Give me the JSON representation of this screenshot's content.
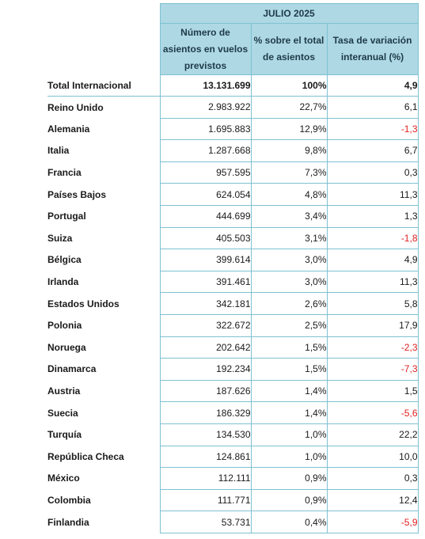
{
  "title": "JULIO 2025",
  "headers": {
    "col1": "Número de asientos en vuelos previstos",
    "col2": "% sobre el total de asientos",
    "col3": "Tasa de variación interanual (%)"
  },
  "total": {
    "name": "Total Internacional",
    "seats": "13.131.699",
    "pct": "100%",
    "var": "4,9"
  },
  "rows": [
    {
      "name": "Reino Unido",
      "seats": "2.983.922",
      "pct": "22,7%",
      "var": "6,1"
    },
    {
      "name": "Alemania",
      "seats": "1.695.883",
      "pct": "12,9%",
      "var": "-1,3"
    },
    {
      "name": "Italia",
      "seats": "1.287.668",
      "pct": "9,8%",
      "var": "6,7"
    },
    {
      "name": "Francia",
      "seats": "957.595",
      "pct": "7,3%",
      "var": "0,3"
    },
    {
      "name": "Países Bajos",
      "seats": "624.054",
      "pct": "4,8%",
      "var": "11,3"
    },
    {
      "name": "Portugal",
      "seats": "444.699",
      "pct": "3,4%",
      "var": "1,3"
    },
    {
      "name": "Suiza",
      "seats": "405.503",
      "pct": "3,1%",
      "var": "-1,8"
    },
    {
      "name": "Bélgica",
      "seats": "399.614",
      "pct": "3,0%",
      "var": "4,9"
    },
    {
      "name": "Irlanda",
      "seats": "391.461",
      "pct": "3,0%",
      "var": "11,3"
    },
    {
      "name": "Estados Unidos",
      "seats": "342.181",
      "pct": "2,6%",
      "var": "5,8"
    },
    {
      "name": "Polonia",
      "seats": "322.672",
      "pct": "2,5%",
      "var": "17,9"
    },
    {
      "name": "Noruega",
      "seats": "202.642",
      "pct": "1,5%",
      "var": "-2,3"
    },
    {
      "name": "Dinamarca",
      "seats": "192.234",
      "pct": "1,5%",
      "var": "-7,3"
    },
    {
      "name": "Austria",
      "seats": "187.626",
      "pct": "1,4%",
      "var": "1,5"
    },
    {
      "name": "Suecia",
      "seats": "186.329",
      "pct": "1,4%",
      "var": "-5,6"
    },
    {
      "name": "Turquía",
      "seats": "134.530",
      "pct": "1,0%",
      "var": "22,2"
    },
    {
      "name": "República Checa",
      "seats": "124.861",
      "pct": "1,0%",
      "var": "10,0"
    },
    {
      "name": "México",
      "seats": "112.111",
      "pct": "0,9%",
      "var": "0,3"
    },
    {
      "name": "Colombia",
      "seats": "111.771",
      "pct": "0,9%",
      "var": "12,4"
    },
    {
      "name": "Finlandia",
      "seats": "53.731",
      "pct": "0,4%",
      "var": "-5,9"
    }
  ],
  "colors": {
    "header_bg": "#add8e4",
    "border": "#7fc1d2",
    "negative": "#e02020"
  }
}
